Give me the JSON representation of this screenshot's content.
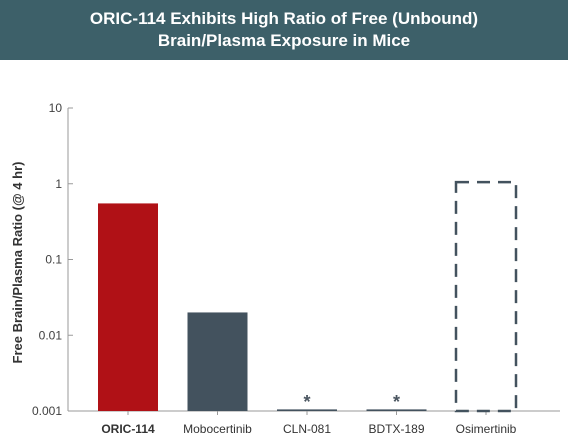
{
  "chart_data": {
    "type": "bar",
    "title_lines": [
      "ORIC-114 Exhibits High Ratio of Free (Unbound)",
      "Brain/Plasma Exposure in Mice"
    ],
    "ylabel": "Free Brain/Plasma Ratio (@ 4 hr)",
    "xlabel": "",
    "yscale": "log",
    "ylim": [
      0.001,
      10
    ],
    "yticks": [
      {
        "value": 10,
        "label": "10"
      },
      {
        "value": 1,
        "label": "1"
      },
      {
        "value": 0.1,
        "label": "0.1"
      },
      {
        "value": 0.01,
        "label": "0.01"
      },
      {
        "value": 0.001,
        "label": "0.001"
      }
    ],
    "categories": [
      "ORIC-114",
      "Mobocertinib",
      "CLN-081",
      "BDTX-189",
      "Osimertinib"
    ],
    "values": [
      0.55,
      0.02,
      0.00105,
      0.00105,
      1.05
    ],
    "annotations": [
      "",
      "",
      "*",
      "*",
      ""
    ],
    "bar_styles": [
      "solid",
      "solid",
      "solid",
      "solid",
      "dashed"
    ],
    "colors": [
      "#b01116",
      "#43525e",
      "#43525e",
      "#43525e",
      "#43525e"
    ],
    "bold_categories": [
      "ORIC-114"
    ],
    "grid": false,
    "legend": "none"
  }
}
